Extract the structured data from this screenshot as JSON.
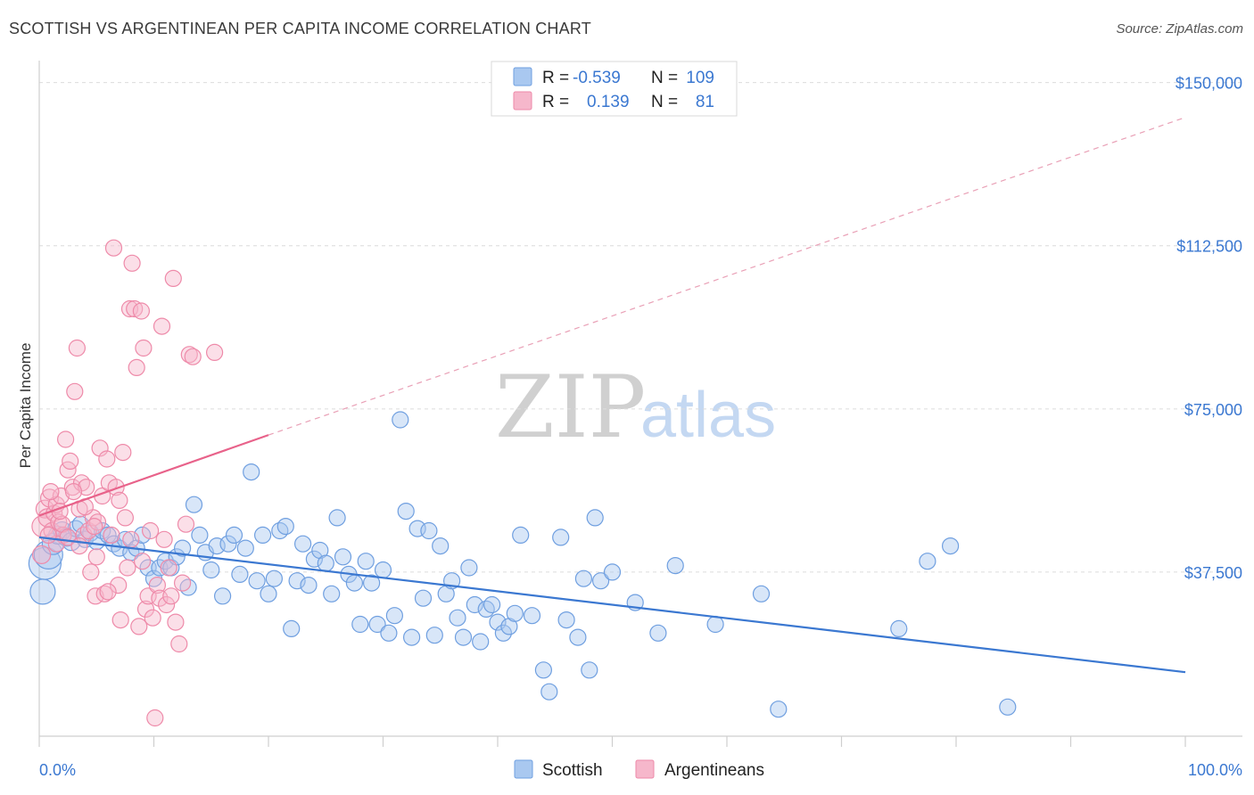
{
  "header": {
    "title": "SCOTTISH VS ARGENTINEAN PER CAPITA INCOME CORRELATION CHART",
    "source": "Source: ZipAtlas.com"
  },
  "watermark": {
    "zip": "ZIP",
    "atlas": "atlas"
  },
  "colors": {
    "blue": "#3b78d1",
    "blue_fill": "#a9c8f0",
    "blue_stroke": "#6f9fe0",
    "pink": "#e8628a",
    "pink_fill": "#f6b7cb",
    "pink_stroke": "#ee8aa9",
    "grid": "#dcdcdc"
  },
  "legend": {
    "rows": [
      {
        "r_label": "R =",
        "r_value": "-0.539",
        "n_label": "N =",
        "n_value": "109",
        "series": "Scottish"
      },
      {
        "r_label": "R =",
        "r_value": "0.139",
        "n_label": "N =",
        "n_value": "81",
        "series": "Argentineans"
      }
    ]
  },
  "bottom_legend": {
    "items": [
      "Scottish",
      "Argentineans"
    ]
  },
  "chart_data": {
    "type": "scatter",
    "title": "SCOTTISH VS ARGENTINEAN PER CAPITA INCOME CORRELATION CHART",
    "xlabel": "",
    "ylabel": "Per Capita Income",
    "xlim": [
      0,
      100
    ],
    "ylim": [
      0,
      153000
    ],
    "x_tick_labels": [
      "0.0%",
      "100.0%"
    ],
    "y_ticks": [
      37500,
      75000,
      112500,
      150000
    ],
    "y_tick_labels": [
      "$37,500",
      "$75,000",
      "$112,500",
      "$150,000"
    ],
    "grid": true,
    "series": [
      {
        "name": "Scottish",
        "color": "#3b78d1",
        "trend": {
          "x": [
            0,
            100
          ],
          "y": [
            45500,
            14500
          ],
          "style": "solid"
        },
        "points": [
          [
            0.3,
            33000,
            14
          ],
          [
            0.5,
            39500,
            18
          ],
          [
            0.8,
            41500,
            16
          ],
          [
            1.2,
            44000,
            12
          ],
          [
            1.6,
            46000,
            10
          ],
          [
            2.0,
            47000,
            10
          ],
          [
            2.4,
            45500,
            10
          ],
          [
            2.8,
            44500,
            10
          ],
          [
            3.2,
            47500,
            9
          ],
          [
            3.6,
            48500,
            9
          ],
          [
            4.0,
            45000,
            9
          ],
          [
            4.5,
            46500,
            9
          ],
          [
            5.0,
            44500,
            9
          ],
          [
            5.5,
            47000,
            9
          ],
          [
            6.0,
            46000,
            9
          ],
          [
            6.5,
            44000,
            9
          ],
          [
            7.0,
            43000,
            9
          ],
          [
            7.5,
            45000,
            9
          ],
          [
            8.0,
            42000,
            9
          ],
          [
            8.5,
            43000,
            9
          ],
          [
            9.0,
            46000,
            9
          ],
          [
            9.5,
            38500,
            9
          ],
          [
            10.0,
            36000,
            9
          ],
          [
            10.5,
            38500,
            9
          ],
          [
            11.0,
            40000,
            9
          ],
          [
            11.5,
            38500,
            9
          ],
          [
            12.0,
            41000,
            9
          ],
          [
            12.5,
            43000,
            9
          ],
          [
            13.0,
            34000,
            9
          ],
          [
            13.5,
            53000,
            9
          ],
          [
            14.0,
            46000,
            9
          ],
          [
            14.5,
            42000,
            9
          ],
          [
            15.0,
            38000,
            9
          ],
          [
            15.5,
            43500,
            9
          ],
          [
            16.0,
            32000,
            9
          ],
          [
            16.5,
            44000,
            9
          ],
          [
            17.0,
            46000,
            9
          ],
          [
            17.5,
            37000,
            9
          ],
          [
            18.0,
            43000,
            9
          ],
          [
            18.5,
            60500,
            9
          ],
          [
            19.0,
            35500,
            9
          ],
          [
            19.5,
            46000,
            9
          ],
          [
            20.0,
            32500,
            9
          ],
          [
            20.5,
            36000,
            9
          ],
          [
            21.0,
            47000,
            9
          ],
          [
            21.5,
            48000,
            9
          ],
          [
            22.0,
            24500,
            9
          ],
          [
            22.5,
            35500,
            9
          ],
          [
            23.0,
            44000,
            9
          ],
          [
            23.5,
            34500,
            9
          ],
          [
            24.0,
            40500,
            9
          ],
          [
            24.5,
            42500,
            9
          ],
          [
            25.0,
            39500,
            9
          ],
          [
            25.5,
            32500,
            9
          ],
          [
            26.0,
            50000,
            9
          ],
          [
            26.5,
            41000,
            9
          ],
          [
            27.0,
            37000,
            9
          ],
          [
            27.5,
            35000,
            9
          ],
          [
            28.0,
            25500,
            9
          ],
          [
            28.5,
            40000,
            9
          ],
          [
            29.0,
            35000,
            9
          ],
          [
            29.5,
            25500,
            9
          ],
          [
            30.0,
            38000,
            9
          ],
          [
            30.5,
            23500,
            9
          ],
          [
            31.0,
            27500,
            9
          ],
          [
            31.5,
            72500,
            9
          ],
          [
            32.0,
            51500,
            9
          ],
          [
            32.5,
            22500,
            9
          ],
          [
            33.0,
            47500,
            9
          ],
          [
            33.5,
            31500,
            9
          ],
          [
            34.0,
            47000,
            9
          ],
          [
            34.5,
            23000,
            9
          ],
          [
            35.0,
            43500,
            9
          ],
          [
            35.5,
            32500,
            9
          ],
          [
            36.0,
            35500,
            9
          ],
          [
            36.5,
            27000,
            9
          ],
          [
            37.0,
            22500,
            9
          ],
          [
            37.5,
            38500,
            9
          ],
          [
            38.0,
            30000,
            9
          ],
          [
            38.5,
            21500,
            9
          ],
          [
            39.0,
            29000,
            9
          ],
          [
            39.5,
            30000,
            9
          ],
          [
            40.0,
            26000,
            9
          ],
          [
            40.5,
            23500,
            9
          ],
          [
            41.0,
            25000,
            9
          ],
          [
            41.5,
            28000,
            9
          ],
          [
            42.0,
            46000,
            9
          ],
          [
            43.0,
            27500,
            9
          ],
          [
            44.0,
            15000,
            9
          ],
          [
            44.5,
            10000,
            9
          ],
          [
            45.5,
            45500,
            9
          ],
          [
            46.0,
            26500,
            9
          ],
          [
            47.0,
            22500,
            9
          ],
          [
            47.5,
            36000,
            9
          ],
          [
            48.0,
            15000,
            9
          ],
          [
            48.5,
            50000,
            9
          ],
          [
            49.0,
            35500,
            9
          ],
          [
            50.0,
            37500,
            9
          ],
          [
            52.0,
            30500,
            9
          ],
          [
            54.0,
            23500,
            9
          ],
          [
            55.5,
            39000,
            9
          ],
          [
            59.0,
            25500,
            9
          ],
          [
            63.0,
            32500,
            9
          ],
          [
            64.5,
            6000,
            9
          ],
          [
            75.0,
            24500,
            9
          ],
          [
            77.5,
            40000,
            9
          ],
          [
            79.5,
            43500,
            9
          ],
          [
            84.5,
            6500,
            9
          ]
        ]
      },
      {
        "name": "Argentineans",
        "color": "#e8628a",
        "trend": {
          "x": [
            0,
            20,
            100
          ],
          "y": [
            50500,
            69000,
            142000
          ],
          "style": "solid-then-dashed"
        },
        "points": [
          [
            0.3,
            48000,
            12
          ],
          [
            0.5,
            52000,
            10
          ],
          [
            0.7,
            50000,
            10
          ],
          [
            0.9,
            54500,
            10
          ],
          [
            1.1,
            47000,
            9
          ],
          [
            1.3,
            51000,
            9
          ],
          [
            1.5,
            53000,
            9
          ],
          [
            1.7,
            49000,
            9
          ],
          [
            1.9,
            55000,
            9
          ],
          [
            2.1,
            46000,
            9
          ],
          [
            2.3,
            68000,
            9
          ],
          [
            2.5,
            61000,
            9
          ],
          [
            2.7,
            63000,
            9
          ],
          [
            2.9,
            57000,
            9
          ],
          [
            3.1,
            79000,
            9
          ],
          [
            3.3,
            89000,
            9
          ],
          [
            3.5,
            52000,
            9
          ],
          [
            3.7,
            58000,
            9
          ],
          [
            3.9,
            46000,
            9
          ],
          [
            4.1,
            57000,
            9
          ],
          [
            4.3,
            47000,
            9
          ],
          [
            4.5,
            37500,
            9
          ],
          [
            4.7,
            50000,
            9
          ],
          [
            4.9,
            32000,
            9
          ],
          [
            5.1,
            49000,
            9
          ],
          [
            5.3,
            66000,
            9
          ],
          [
            5.5,
            55000,
            9
          ],
          [
            5.7,
            32500,
            9
          ],
          [
            5.9,
            63500,
            9
          ],
          [
            6.1,
            58000,
            9
          ],
          [
            6.3,
            46000,
            9
          ],
          [
            6.5,
            112000,
            9
          ],
          [
            6.7,
            57000,
            9
          ],
          [
            6.9,
            34500,
            9
          ],
          [
            7.1,
            26500,
            9
          ],
          [
            7.3,
            65000,
            9
          ],
          [
            7.5,
            50000,
            9
          ],
          [
            7.7,
            38500,
            9
          ],
          [
            7.9,
            98000,
            9
          ],
          [
            8.1,
            108500,
            9
          ],
          [
            8.3,
            98000,
            9
          ],
          [
            8.5,
            84500,
            9
          ],
          [
            8.7,
            25000,
            9
          ],
          [
            8.9,
            97500,
            9
          ],
          [
            9.1,
            89000,
            9
          ],
          [
            9.3,
            29000,
            9
          ],
          [
            9.5,
            32000,
            9
          ],
          [
            9.7,
            47000,
            9
          ],
          [
            9.9,
            27000,
            9
          ],
          [
            10.1,
            4000,
            9
          ],
          [
            10.3,
            34500,
            9
          ],
          [
            10.5,
            31500,
            9
          ],
          [
            10.7,
            94000,
            9
          ],
          [
            10.9,
            45000,
            9
          ],
          [
            11.1,
            30000,
            9
          ],
          [
            11.3,
            38500,
            9
          ],
          [
            11.5,
            32000,
            9
          ],
          [
            11.7,
            105000,
            9
          ],
          [
            11.9,
            26000,
            9
          ],
          [
            12.2,
            21000,
            9
          ],
          [
            12.5,
            35000,
            9
          ],
          [
            12.8,
            48500,
            9
          ],
          [
            13.1,
            87500,
            9
          ],
          [
            13.4,
            87000,
            9
          ],
          [
            15.3,
            88000,
            9
          ],
          [
            0.2,
            41500,
            10
          ],
          [
            1.0,
            56000,
            9
          ],
          [
            2.0,
            48500,
            9
          ],
          [
            3.0,
            56000,
            9
          ],
          [
            4.0,
            52500,
            9
          ],
          [
            5.0,
            41000,
            9
          ],
          [
            6.0,
            33000,
            9
          ],
          [
            7.0,
            54000,
            9
          ],
          [
            8.0,
            45000,
            9
          ],
          [
            9.0,
            40000,
            9
          ],
          [
            1.5,
            44000,
            9
          ],
          [
            2.5,
            45500,
            9
          ],
          [
            3.5,
            43500,
            9
          ],
          [
            0.8,
            46000,
            9
          ],
          [
            1.8,
            51500,
            9
          ],
          [
            4.8,
            48000,
            9
          ]
        ]
      }
    ]
  }
}
